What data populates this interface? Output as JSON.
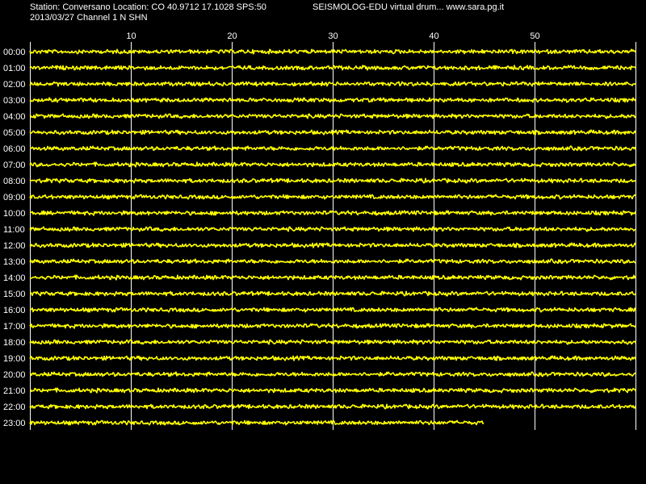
{
  "header": {
    "station_line": "Station: Conversano Location: CO 40.9712 17.1028 SPS:50",
    "app_line": "SEISMOLOG-EDU virtual drum... www.sara.pg.it",
    "date_line": "2013/03/27  Channel 1 N SHN"
  },
  "drum": {
    "minute_ticks": [
      "10",
      "20",
      "30",
      "40",
      "50"
    ],
    "minute_tick_values": [
      10,
      20,
      30,
      40,
      50
    ],
    "minutes_per_line": 60,
    "hour_labels": [
      "00:00",
      "01:00",
      "02:00",
      "03:00",
      "04:00",
      "05:00",
      "06:00",
      "07:00",
      "08:00",
      "09:00",
      "10:00",
      "11:00",
      "12:00",
      "13:00",
      "14:00",
      "15:00",
      "16:00",
      "17:00",
      "18:00",
      "19:00",
      "20:00",
      "21:00",
      "22:00",
      "23:00"
    ],
    "last_line_minutes": 45,
    "colors": {
      "background": "#000000",
      "trace": "#ffff00",
      "grid": "#ffffff",
      "text": "#ffffff"
    }
  }
}
